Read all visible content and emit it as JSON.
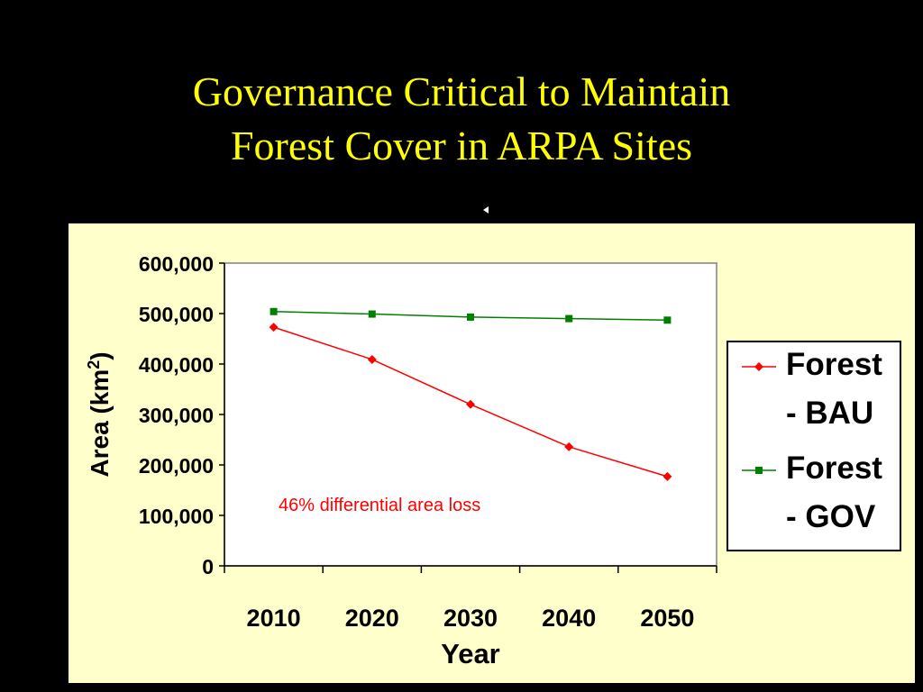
{
  "slide": {
    "title_line1": "Governance Critical to Maintain",
    "title_line2": "Forest Cover in ARPA Sites"
  },
  "colors": {
    "background": "#000000",
    "title": "#ffff00",
    "panel": "#ffffcc",
    "bau": "#ff0000",
    "gov": "#008000"
  },
  "chart_data": {
    "type": "line",
    "categories": [
      "2010",
      "2020",
      "2030",
      "2040",
      "2050"
    ],
    "series": [
      {
        "name": "Forest - BAU",
        "legend_lines": [
          "Forest",
          "- BAU"
        ],
        "marker": "diamond",
        "color": "#ff0000",
        "values": [
          473000,
          409000,
          320000,
          236000,
          177000
        ]
      },
      {
        "name": "Forest - GOV",
        "legend_lines": [
          "Forest",
          "- GOV"
        ],
        "marker": "square",
        "color": "#008000",
        "values": [
          504000,
          499000,
          493000,
          490000,
          487000
        ]
      }
    ],
    "yticks": [
      "0",
      "100,000",
      "200,000",
      "300,000",
      "400,000",
      "500,000",
      "600,000"
    ],
    "ylim": [
      0,
      600000
    ],
    "xlabel": "Year",
    "ylabel": "Area (km",
    "ylabel_sup": "2",
    "ylabel_end": ")",
    "annotation": "46% differential area loss",
    "legend_position": "right",
    "grid": false
  }
}
